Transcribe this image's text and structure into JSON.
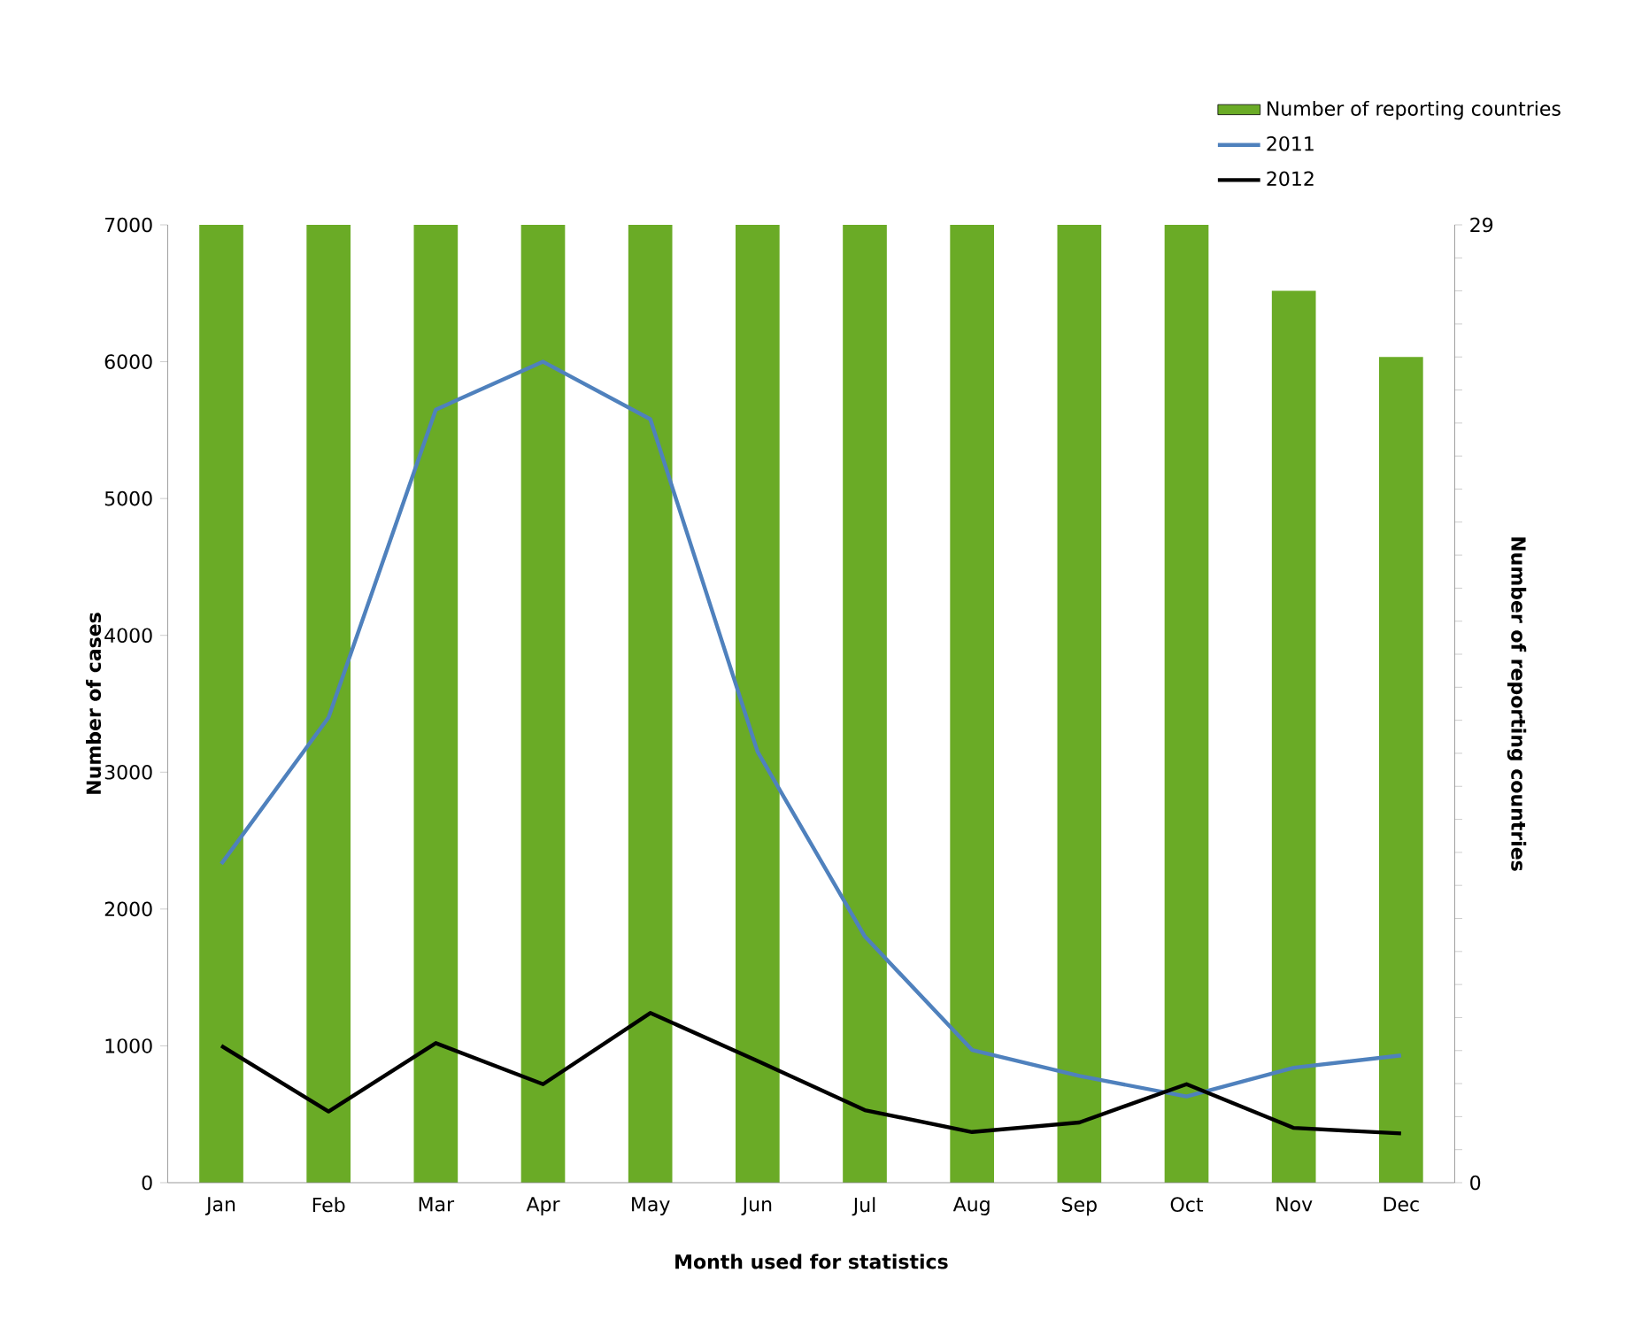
{
  "chart_data": {
    "type": "bar",
    "xlabel": "**Month used for statistics**",
    "ylabel": "**Number of cases**",
    "y2label": "**Number of reporting countries**",
    "categories": [
      "Jan",
      "Feb",
      "Mar",
      "Apr",
      "May",
      "Jun",
      "Jul",
      "Aug",
      "Sep",
      "Oct",
      "Nov",
      "Dec"
    ],
    "series": [
      {
        "name": "Number of reporting countries",
        "axis": "y2",
        "color": "#6aab26",
        "values": [
          29,
          29,
          29,
          29,
          29,
          29,
          29,
          29,
          29,
          29,
          27,
          25
        ]
      },
      {
        "name": "2011",
        "type": "line",
        "color": "#4f81bd",
        "values": [
          2330,
          3400,
          5650,
          6000,
          5580,
          3150,
          1800,
          970,
          780,
          630,
          840,
          930
        ]
      },
      {
        "name": "2012",
        "type": "line",
        "color": "#000000",
        "values": [
          1000,
          520,
          1020,
          720,
          1240,
          890,
          530,
          370,
          440,
          720,
          400,
          360
        ]
      }
    ],
    "ylim": [
      0,
      7000
    ],
    "yticks": [
      0,
      1000,
      2000,
      3000,
      4000,
      5000,
      6000,
      7000
    ],
    "y2lim": [
      0,
      29
    ],
    "y2ticks": [
      0,
      {
        "value": 1,
        "label": null
      },
      {
        "value": 2,
        "label": null
      },
      {
        "value": 3,
        "label": null
      },
      {
        "value": 4,
        "label": null
      },
      {
        "value": 5,
        "label": null
      },
      {
        "value": 6,
        "label": null
      },
      {
        "value": 7,
        "label": null
      },
      {
        "value": 8,
        "label": null
      },
      {
        "value": 9,
        "label": null
      },
      {
        "value": 10,
        "label": null
      },
      {
        "value": 11,
        "label": null
      },
      {
        "value": 12,
        "label": null
      },
      {
        "value": 13,
        "label": null
      },
      {
        "value": 14,
        "label": null
      },
      {
        "value": 15,
        "label": null
      },
      {
        "value": 16,
        "label": null
      },
      {
        "value": 17,
        "label": null
      },
      {
        "value": 18,
        "label": null
      },
      {
        "value": 19,
        "label": null
      },
      {
        "value": 20,
        "label": null
      },
      {
        "value": 21,
        "label": null
      },
      {
        "value": 22,
        "label": null
      },
      {
        "value": 23,
        "label": null
      },
      {
        "value": 24,
        "label": null
      },
      {
        "value": 25,
        "label": null
      },
      {
        "value": 26,
        "label": null
      },
      {
        "value": 27,
        "label": null
      },
      {
        "value": 28,
        "label": null
      },
      29
    ],
    "legend": "top right",
    "marker": "none"
  }
}
